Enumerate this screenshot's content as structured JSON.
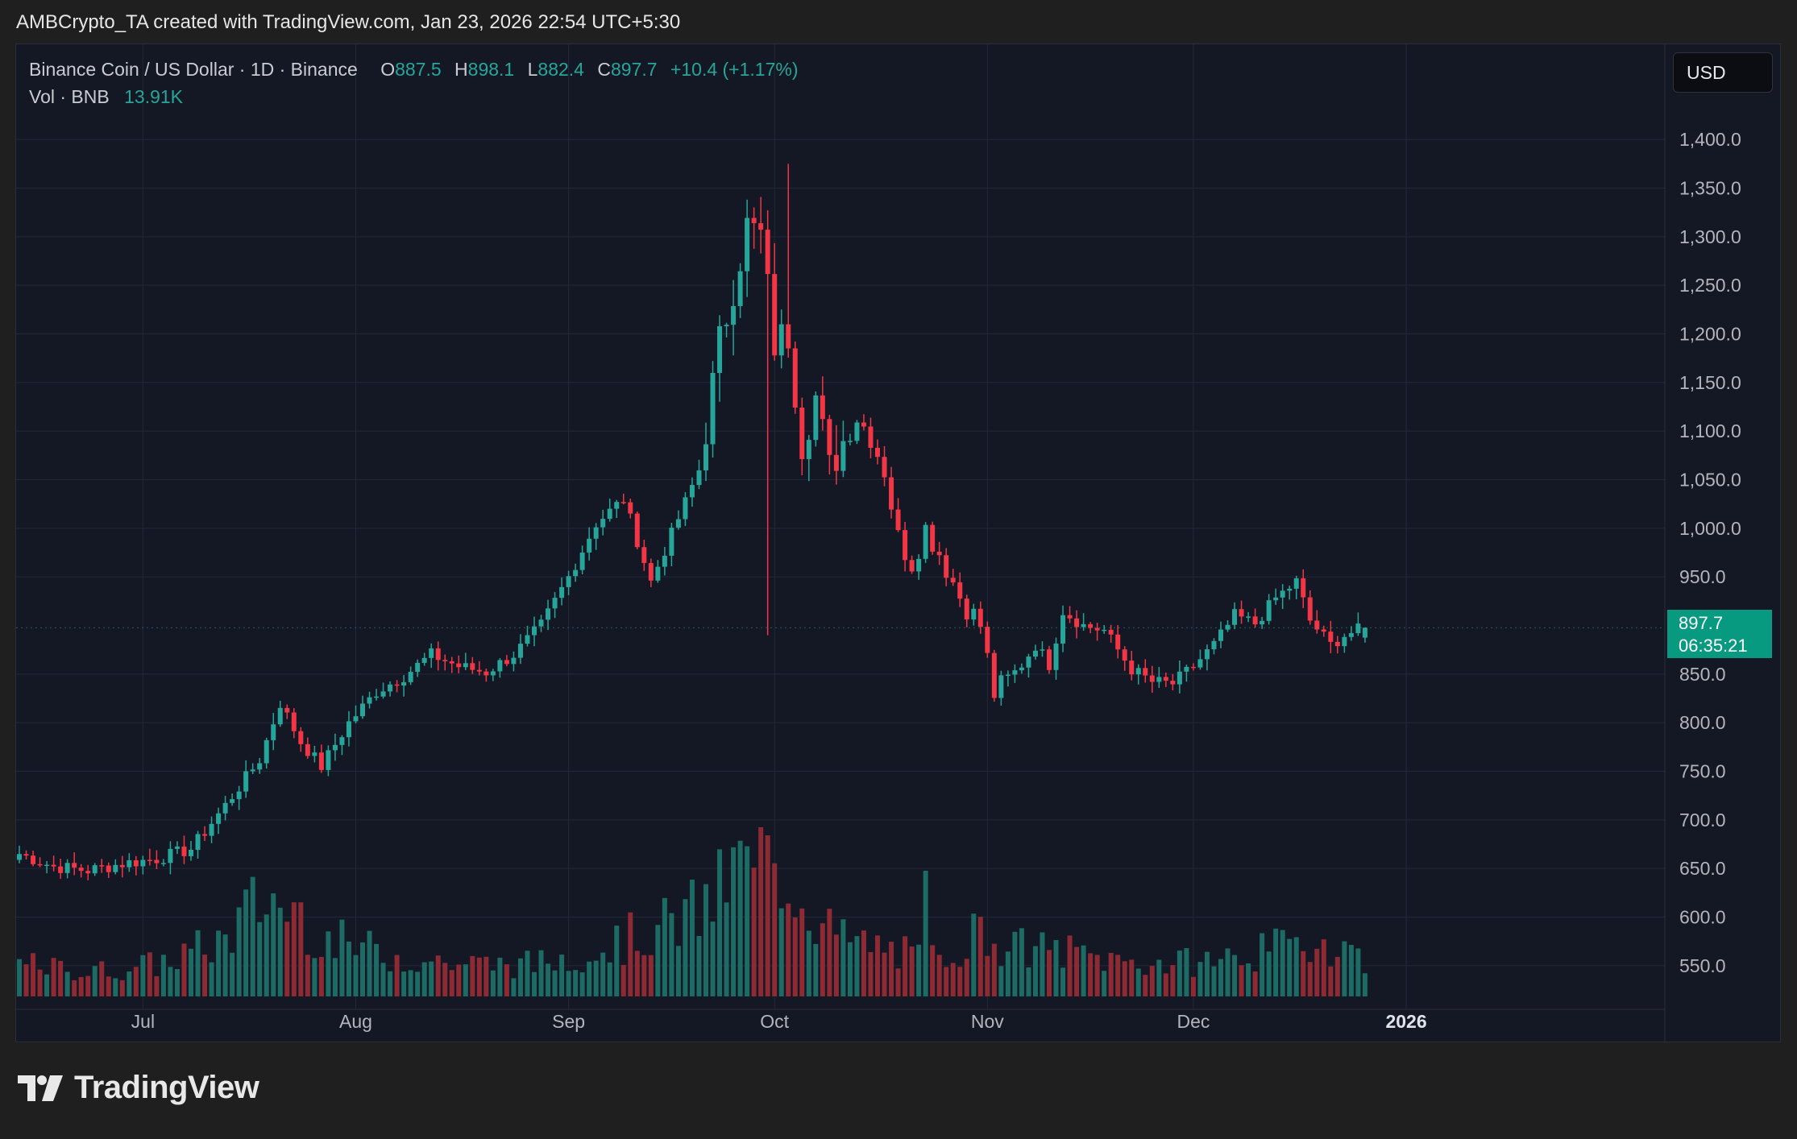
{
  "attribution": "AMBCrypto_TA created with TradingView.com, Jan 23, 2026 22:54 UTC+5:30",
  "legend": {
    "symbol": "Binance Coin / US Dollar · 1D · Binance",
    "open_label": "O",
    "open": "887.5",
    "high_label": "H",
    "high": "898.1",
    "low_label": "L",
    "low": "882.4",
    "close_label": "C",
    "close": "897.7",
    "change": "+10.4 (+1.17%)",
    "vol_label": "Vol · BNB",
    "vol_value": "13.91K"
  },
  "currency_button": "USD",
  "price_tag": {
    "price": "897.7",
    "countdown": "06:35:21"
  },
  "brand": "TradingView",
  "colors": {
    "up": "#26a69a",
    "down": "#f23645",
    "up_vol": "#1c6b64",
    "down_vol": "#8e2a33",
    "background": "#141824",
    "grid": "#23273a",
    "axis_text": "#b2b5be",
    "tag": "#089981"
  },
  "chart_data": {
    "type": "candlestick",
    "title": "Binance Coin / US Dollar · 1D · Binance",
    "yaxis": {
      "min": 525,
      "max": 1425,
      "ticks": [
        "1,400.0",
        "1,350.0",
        "1,300.0",
        "1,250.0",
        "1,200.0",
        "1,150.0",
        "1,100.0",
        "1,050.0",
        "1,000.0",
        "950.0",
        "850.0",
        "800.0",
        "750.0",
        "700.0",
        "650.0",
        "600.0",
        "550.0"
      ]
    },
    "xaxis": {
      "labels": [
        {
          "text": "Jul",
          "day": 18
        },
        {
          "text": "Aug",
          "day": 49
        },
        {
          "text": "Sep",
          "day": 80
        },
        {
          "text": "Oct",
          "day": 110
        },
        {
          "text": "Nov",
          "day": 141
        },
        {
          "text": "Dec",
          "day": 171
        },
        {
          "text": "2026",
          "day": 202,
          "bold": true
        }
      ]
    },
    "grid": true,
    "last_price": 897.7,
    "anchors": [
      [
        0,
        665
      ],
      [
        5,
        652
      ],
      [
        10,
        648
      ],
      [
        15,
        655
      ],
      [
        20,
        660
      ],
      [
        25,
        670
      ],
      [
        30,
        715
      ],
      [
        35,
        762
      ],
      [
        38,
        820
      ],
      [
        41,
        780
      ],
      [
        44,
        755
      ],
      [
        48,
        800
      ],
      [
        52,
        832
      ],
      [
        56,
        848
      ],
      [
        60,
        870
      ],
      [
        64,
        858
      ],
      [
        68,
        852
      ],
      [
        72,
        870
      ],
      [
        76,
        900
      ],
      [
        80,
        950
      ],
      [
        84,
        1005
      ],
      [
        88,
        1030
      ],
      [
        92,
        945
      ],
      [
        96,
        1010
      ],
      [
        99,
        1060
      ],
      [
        102,
        1190
      ],
      [
        104,
        1250
      ],
      [
        106,
        1310
      ],
      [
        108,
        1300
      ],
      [
        110,
        1190
      ],
      [
        112,
        1200
      ],
      [
        114,
        1090
      ],
      [
        116,
        1135
      ],
      [
        118,
        1060
      ],
      [
        120,
        1090
      ],
      [
        122,
        1115
      ],
      [
        124,
        1095
      ],
      [
        126,
        1060
      ],
      [
        128,
        990
      ],
      [
        130,
        965
      ],
      [
        132,
        1000
      ],
      [
        134,
        975
      ],
      [
        137,
        930
      ],
      [
        140,
        900
      ],
      [
        142,
        830
      ],
      [
        145,
        850
      ],
      [
        148,
        880
      ],
      [
        150,
        860
      ],
      [
        152,
        915
      ],
      [
        155,
        900
      ],
      [
        158,
        895
      ],
      [
        162,
        855
      ],
      [
        165,
        842
      ],
      [
        168,
        840
      ],
      [
        171,
        858
      ],
      [
        174,
        880
      ],
      [
        177,
        910
      ],
      [
        180,
        902
      ],
      [
        183,
        928
      ],
      [
        186,
        945
      ],
      [
        188,
        905
      ],
      [
        191,
        880
      ],
      [
        193,
        890
      ],
      [
        196,
        897.7
      ]
    ],
    "vol_anchors": [
      [
        0,
        0.2
      ],
      [
        10,
        0.15
      ],
      [
        20,
        0.2
      ],
      [
        30,
        0.35
      ],
      [
        35,
        0.6
      ],
      [
        40,
        0.55
      ],
      [
        45,
        0.35
      ],
      [
        55,
        0.25
      ],
      [
        65,
        0.2
      ],
      [
        75,
        0.2
      ],
      [
        85,
        0.3
      ],
      [
        95,
        0.45
      ],
      [
        100,
        0.55
      ],
      [
        104,
        0.75
      ],
      [
        107,
        0.95
      ],
      [
        110,
        0.85
      ],
      [
        113,
        0.7
      ],
      [
        117,
        0.45
      ],
      [
        120,
        0.35
      ],
      [
        126,
        0.3
      ],
      [
        132,
        0.22
      ],
      [
        140,
        0.4
      ],
      [
        145,
        0.3
      ],
      [
        152,
        0.28
      ],
      [
        160,
        0.22
      ],
      [
        168,
        0.2
      ],
      [
        176,
        0.24
      ],
      [
        184,
        0.3
      ],
      [
        190,
        0.35
      ],
      [
        196,
        0.25
      ]
    ],
    "days": 197
  }
}
